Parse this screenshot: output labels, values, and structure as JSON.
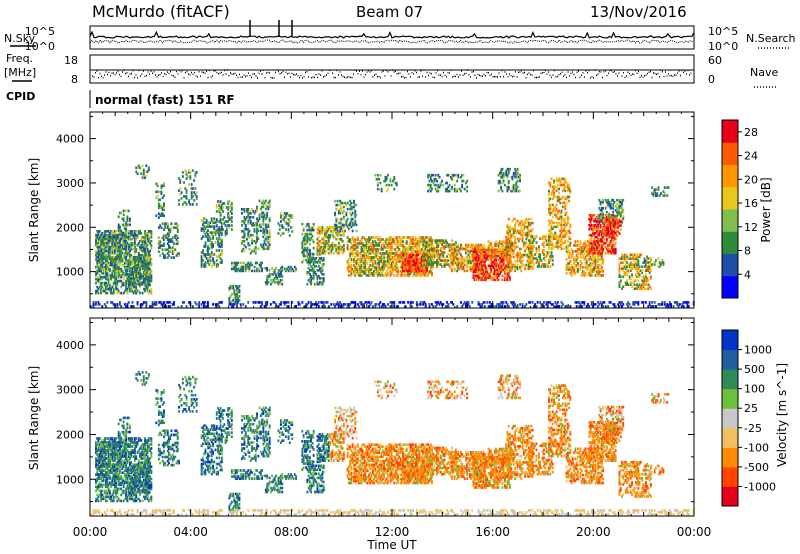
{
  "header": {
    "station": "McMurdo (fitACF)",
    "beam": "Beam 07",
    "date": "13/Nov/2016"
  },
  "top_panels": {
    "nsky_label": "N.Sky",
    "nsearch_label": "N.Search",
    "freq_label_1": "Freq.",
    "freq_label_2": "[MHz]",
    "nave_label": "Nave",
    "cpid_label": "CPID",
    "cpid_text": "normal (fast) 151 RF",
    "noise_left_ticks": [
      "10^5",
      "10^0"
    ],
    "noise_right_ticks": [
      "10^5",
      "10^0"
    ],
    "freq_ticks": [
      "18",
      "8"
    ],
    "nave_ticks": [
      "60",
      "0"
    ]
  },
  "colors": {
    "power_scale": [
      "#0000ff",
      "#1f4fa8",
      "#2e8b3a",
      "#7fbf4f",
      "#e8c820",
      "#ff9800",
      "#ff5a00",
      "#e8001a"
    ],
    "velocity_scale": [
      "#0033cc",
      "#1f5fa0",
      "#2e8b57",
      "#6cc03a",
      "#c8c8c8",
      "#f0c060",
      "#ff8c00",
      "#ff4500",
      "#e8001a"
    ]
  },
  "chart_data": [
    {
      "type": "heatmap",
      "name": "power",
      "xlabel": "Time UT",
      "ylabel": "Slant Range [km]",
      "x_ticks": [
        "00:00",
        "04:00",
        "08:00",
        "12:00",
        "16:00",
        "20:00",
        "00:00"
      ],
      "xlim": [
        0,
        24
      ],
      "ylim": [
        180,
        4600
      ],
      "y_ticks": [
        1000,
        2000,
        3000,
        4000
      ],
      "colorbar_label": "Power [dB]",
      "colorbar_ticks": [
        4,
        8,
        12,
        16,
        20,
        24,
        28
      ],
      "colorbar_range": [
        0,
        30
      ]
    },
    {
      "type": "heatmap",
      "name": "velocity",
      "xlabel": "Time UT",
      "ylabel": "Slant Range [km]",
      "x_ticks": [
        "00:00",
        "04:00",
        "08:00",
        "12:00",
        "16:00",
        "20:00",
        "00:00"
      ],
      "xlim": [
        0,
        24
      ],
      "ylim": [
        180,
        4600
      ],
      "y_ticks": [
        1000,
        2000,
        3000,
        4000
      ],
      "colorbar_label": "Velocity [m s^-1]",
      "colorbar_ticks": [
        1000,
        500,
        100,
        25,
        -25,
        -100,
        -500,
        -1000
      ]
    }
  ]
}
